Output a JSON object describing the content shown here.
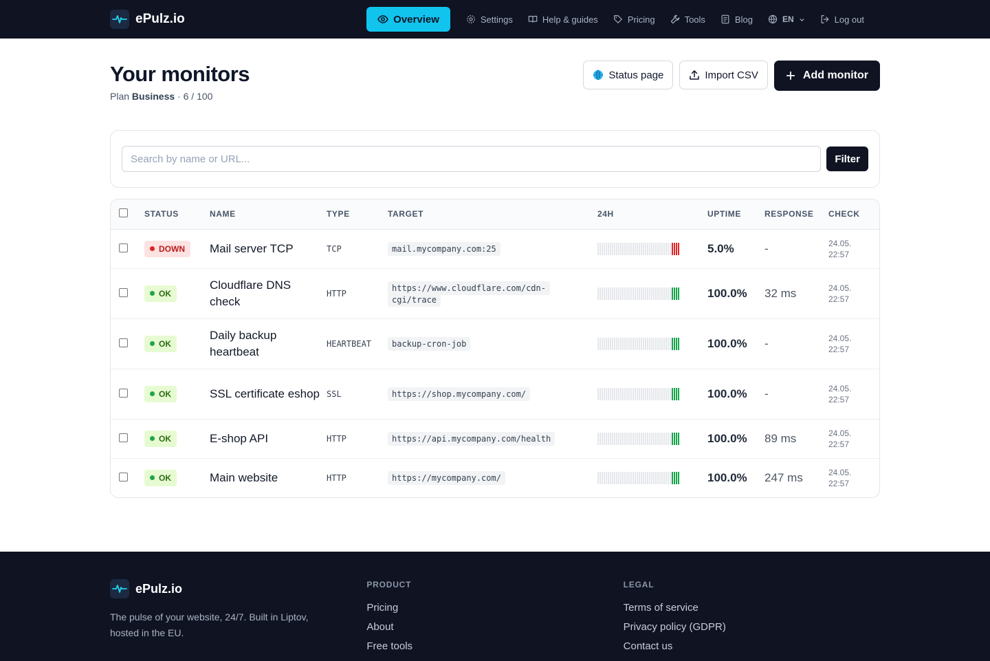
{
  "brand": {
    "name": "ePulz.io"
  },
  "nav": {
    "overview": "Overview",
    "settings": "Settings",
    "help": "Help & guides",
    "pricing": "Pricing",
    "tools": "Tools",
    "blog": "Blog",
    "language": "EN",
    "logout": "Log out"
  },
  "header": {
    "title": "Your monitors",
    "plan_prefix": "Plan",
    "plan_name": "Business",
    "plan_usage": "· 6 / 100",
    "status_page": "Status page",
    "import_csv": "Import CSV",
    "add_monitor": "Add monitor"
  },
  "search": {
    "placeholder": "Search by name or URL...",
    "filter_label": "Filter"
  },
  "table": {
    "columns": [
      "STATUS",
      "NAME",
      "TYPE",
      "TARGET",
      "24H",
      "UPTIME",
      "RESPONSE",
      "CHECK"
    ],
    "rows": [
      {
        "status": "DOWN",
        "state": "down",
        "name": "Mail server TCP",
        "type": "TCP",
        "target": "mail.mycompany.com:25",
        "uptime": "5.0%",
        "response": "-",
        "check_date": "24.05.",
        "check_time": "22:57"
      },
      {
        "status": "OK",
        "state": "ok",
        "name": "Cloudflare DNS check",
        "type": "HTTP",
        "target": "https://www.cloudflare.com/cdn-cgi/trace",
        "uptime": "100.0%",
        "response": "32 ms",
        "check_date": "24.05.",
        "check_time": "22:57"
      },
      {
        "status": "OK",
        "state": "ok",
        "name": "Daily backup heartbeat",
        "type": "HEARTBEAT",
        "target": "backup-cron-job",
        "uptime": "100.0%",
        "response": "-",
        "check_date": "24.05.",
        "check_time": "22:57"
      },
      {
        "status": "OK",
        "state": "ok",
        "name": "SSL certificate eshop",
        "type": "SSL",
        "target": "https://shop.mycompany.com/",
        "uptime": "100.0%",
        "response": "-",
        "check_date": "24.05.",
        "check_time": "22:57"
      },
      {
        "status": "OK",
        "state": "ok",
        "name": "E-shop API",
        "type": "HTTP",
        "target": "https://api.mycompany.com/health",
        "uptime": "100.0%",
        "response": "89 ms",
        "check_date": "24.05.",
        "check_time": "22:57"
      },
      {
        "status": "OK",
        "state": "ok",
        "name": "Main website",
        "type": "HTTP",
        "target": "https://mycompany.com/",
        "uptime": "100.0%",
        "response": "247 ms",
        "check_date": "24.05.",
        "check_time": "22:57"
      }
    ]
  },
  "footer": {
    "brand": "ePulz.io",
    "tagline": "The pulse of your website, 24/7. Built in Liptov, hosted in the EU.",
    "product_heading": "PRODUCT",
    "product_links": [
      "Pricing",
      "About",
      "Free tools"
    ],
    "legal_heading": "LEGAL",
    "legal_links": [
      "Terms of service",
      "Privacy policy (GDPR)",
      "Contact us"
    ]
  },
  "colors": {
    "accent": "#11c4ee",
    "dark": "#0f1322",
    "ok": "#16a34a",
    "down": "#dc2626"
  }
}
